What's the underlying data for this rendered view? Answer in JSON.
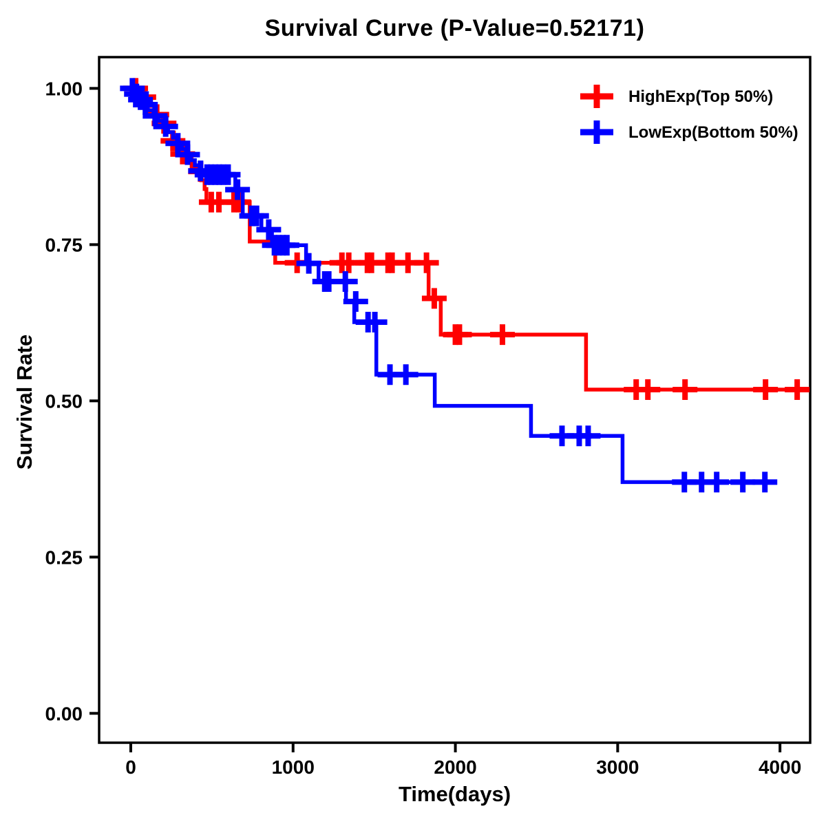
{
  "page": {
    "background": "#ffffff"
  },
  "chart_data": {
    "type": "km_step",
    "title": "Survival Curve (P-Value=0.52171)",
    "p_value": "0.52171",
    "xlabel": "Time(days)",
    "ylabel": "Survival Rate",
    "xlim": [
      -195,
      4186
    ],
    "ylim": [
      -0.047,
      1.05
    ],
    "x_ticks": [
      0,
      1000,
      2000,
      3000,
      4000
    ],
    "x_tick_labels": [
      "0",
      "1000",
      "2000",
      "3000",
      "4000"
    ],
    "y_ticks": [
      0,
      0.25,
      0.5,
      0.75,
      1.0
    ],
    "y_tick_labels": [
      "0.00",
      "0.25",
      "0.50",
      "0.75",
      "1.00"
    ],
    "grid": false,
    "legend_position": "top-right",
    "axis_color": "#000000",
    "series": [
      {
        "name": "HighExp(Top 50%)",
        "color": "#FF0000",
        "end_time": 4165,
        "steps": [
          [
            0,
            1.0
          ],
          [
            55,
            0.993
          ],
          [
            85,
            0.986
          ],
          [
            125,
            0.972
          ],
          [
            155,
            0.958
          ],
          [
            195,
            0.944
          ],
          [
            225,
            0.93
          ],
          [
            255,
            0.916
          ],
          [
            285,
            0.909
          ],
          [
            315,
            0.895
          ],
          [
            345,
            0.888
          ],
          [
            375,
            0.874
          ],
          [
            405,
            0.867
          ],
          [
            435,
            0.853
          ],
          [
            455,
            0.839
          ],
          [
            466,
            0.818
          ],
          [
            733,
            0.755
          ],
          [
            890,
            0.721
          ],
          [
            1835,
            0.664
          ],
          [
            1910,
            0.606
          ],
          [
            2805,
            0.518
          ]
        ],
        "censors": [
          [
            30,
            1.0
          ],
          [
            80,
            0.986
          ],
          [
            160,
            0.958
          ],
          [
            205,
            0.944
          ],
          [
            260,
            0.916
          ],
          [
            320,
            0.895
          ],
          [
            430,
            0.867
          ],
          [
            496,
            0.818
          ],
          [
            543,
            0.818
          ],
          [
            636,
            0.818
          ],
          [
            665,
            0.818
          ],
          [
            1025,
            0.721
          ],
          [
            1301,
            0.721
          ],
          [
            1343,
            0.721
          ],
          [
            1458,
            0.721
          ],
          [
            1483,
            0.721
          ],
          [
            1585,
            0.721
          ],
          [
            1610,
            0.721
          ],
          [
            1708,
            0.721
          ],
          [
            1822,
            0.721
          ],
          [
            1870,
            0.664
          ],
          [
            2000,
            0.606
          ],
          [
            2025,
            0.606
          ],
          [
            2290,
            0.606
          ],
          [
            3114,
            0.518
          ],
          [
            3186,
            0.518
          ],
          [
            3415,
            0.518
          ],
          [
            3911,
            0.518
          ],
          [
            4106,
            0.518
          ]
        ]
      },
      {
        "name": "LowExp(Bottom 50%)",
        "color": "#0000FF",
        "end_time": 3962,
        "steps": [
          [
            0,
            1.0
          ],
          [
            15,
            0.991
          ],
          [
            45,
            0.982
          ],
          [
            75,
            0.974
          ],
          [
            105,
            0.965
          ],
          [
            140,
            0.956
          ],
          [
            170,
            0.948
          ],
          [
            200,
            0.939
          ],
          [
            230,
            0.93
          ],
          [
            260,
            0.921
          ],
          [
            285,
            0.912
          ],
          [
            315,
            0.903
          ],
          [
            340,
            0.894
          ],
          [
            370,
            0.885
          ],
          [
            395,
            0.877
          ],
          [
            425,
            0.868
          ],
          [
            445,
            0.862
          ],
          [
            644,
            0.838
          ],
          [
            690,
            0.796
          ],
          [
            805,
            0.774
          ],
          [
            870,
            0.749
          ],
          [
            1080,
            0.72
          ],
          [
            1157,
            0.691
          ],
          [
            1326,
            0.659
          ],
          [
            1377,
            0.626
          ],
          [
            1513,
            0.542
          ],
          [
            1873,
            0.492
          ],
          [
            2466,
            0.444
          ],
          [
            3030,
            0.37
          ]
        ],
        "censors": [
          [
            10,
            1.0
          ],
          [
            35,
            0.991
          ],
          [
            60,
            0.982
          ],
          [
            90,
            0.974
          ],
          [
            150,
            0.956
          ],
          [
            215,
            0.939
          ],
          [
            290,
            0.912
          ],
          [
            350,
            0.894
          ],
          [
            430,
            0.868
          ],
          [
            470,
            0.862
          ],
          [
            495,
            0.862
          ],
          [
            520,
            0.862
          ],
          [
            545,
            0.862
          ],
          [
            570,
            0.862
          ],
          [
            600,
            0.862
          ],
          [
            658,
            0.838
          ],
          [
            745,
            0.796
          ],
          [
            775,
            0.796
          ],
          [
            850,
            0.774
          ],
          [
            885,
            0.749
          ],
          [
            912,
            0.749
          ],
          [
            938,
            0.749
          ],
          [
            962,
            0.749
          ],
          [
            1097,
            0.72
          ],
          [
            1195,
            0.691
          ],
          [
            1220,
            0.691
          ],
          [
            1322,
            0.691
          ],
          [
            1386,
            0.659
          ],
          [
            1462,
            0.626
          ],
          [
            1504,
            0.626
          ],
          [
            1597,
            0.542
          ],
          [
            1695,
            0.542
          ],
          [
            2657,
            0.444
          ],
          [
            2763,
            0.444
          ],
          [
            2818,
            0.444
          ],
          [
            3411,
            0.37
          ],
          [
            3517,
            0.37
          ],
          [
            3610,
            0.37
          ],
          [
            3771,
            0.37
          ],
          [
            3907,
            0.37
          ]
        ]
      }
    ]
  }
}
